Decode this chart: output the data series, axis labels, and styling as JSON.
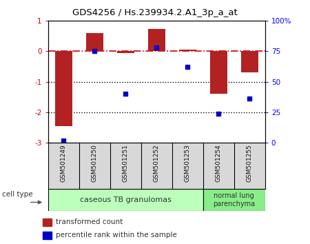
{
  "title": "GDS4256 / Hs.239934.2.A1_3p_a_at",
  "samples": [
    "GSM501249",
    "GSM501250",
    "GSM501251",
    "GSM501252",
    "GSM501253",
    "GSM501254",
    "GSM501255"
  ],
  "transformed_count": [
    -2.45,
    0.6,
    -0.05,
    0.72,
    0.05,
    -1.4,
    -0.7
  ],
  "percentile_rank": [
    2,
    75,
    40,
    78,
    62,
    24,
    36
  ],
  "ylim_left": [
    -3,
    1
  ],
  "ylim_right": [
    0,
    100
  ],
  "left_yticks": [
    -3,
    -2,
    -1,
    0,
    1
  ],
  "right_yticks": [
    0,
    25,
    50,
    75,
    100
  ],
  "right_yticklabels": [
    "0",
    "25",
    "50",
    "75",
    "100%"
  ],
  "bar_color": "#b22222",
  "scatter_color": "#0000cc",
  "hline_color": "#cc0000",
  "dotted_line_color": "#000000",
  "group1_label": "caseous TB granulomas",
  "group2_label": "normal lung\nparenchyma",
  "group1_indices": [
    0,
    1,
    2,
    3,
    4
  ],
  "group2_indices": [
    5,
    6
  ],
  "cell_type_label": "cell type",
  "legend_bar_label": "transformed count",
  "legend_scatter_label": "percentile rank within the sample",
  "group1_color": "#bbffbb",
  "group2_color": "#88ee88",
  "bar_width": 0.55,
  "figsize": [
    4.5,
    3.54
  ],
  "dpi": 100
}
